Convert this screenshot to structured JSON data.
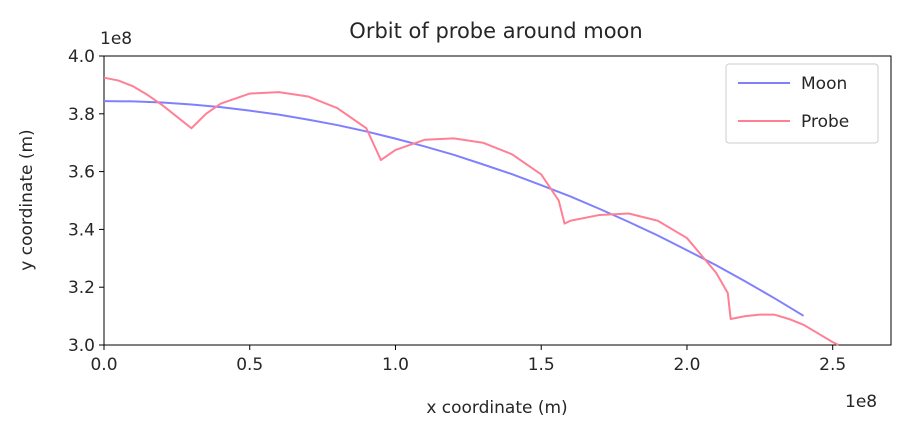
{
  "chart_data": {
    "type": "line",
    "title": "Orbit of probe around moon",
    "xlabel": "x coordinate (m)",
    "ylabel": "y coordinate (m)",
    "x_offset_text": "1e8",
    "y_offset_text": "1e8",
    "xlim": [
      0.0,
      2.7
    ],
    "ylim": [
      3.0,
      4.0
    ],
    "xticks": [
      "0.0",
      "0.5",
      "1.0",
      "1.5",
      "2.0",
      "2.5"
    ],
    "yticks": [
      "3.0",
      "3.2",
      "3.4",
      "3.6",
      "3.8",
      "4.0"
    ],
    "grid": false,
    "legend_position": "top-right",
    "series": [
      {
        "name": "Moon",
        "color": "#8080ff",
        "x": [
          0.0,
          0.1,
          0.2,
          0.3,
          0.4,
          0.5,
          0.6,
          0.7,
          0.8,
          0.9,
          1.0,
          1.1,
          1.2,
          1.3,
          1.4,
          1.5,
          1.6,
          1.7,
          1.8,
          1.9,
          2.0,
          2.1,
          2.2,
          2.3,
          2.4
        ],
        "y": [
          3.844,
          3.843,
          3.839,
          3.832,
          3.823,
          3.811,
          3.797,
          3.78,
          3.761,
          3.739,
          3.714,
          3.687,
          3.658,
          3.625,
          3.591,
          3.553,
          3.514,
          3.471,
          3.426,
          3.379,
          3.328,
          3.276,
          3.22,
          3.162,
          3.101
        ]
      },
      {
        "name": "Probe",
        "color": "#ff8095",
        "x": [
          0.0,
          0.05,
          0.1,
          0.15,
          0.2,
          0.25,
          0.3,
          0.35,
          0.4,
          0.5,
          0.6,
          0.7,
          0.8,
          0.9,
          0.95,
          1.0,
          1.1,
          1.2,
          1.3,
          1.4,
          1.5,
          1.56,
          1.58,
          1.6,
          1.7,
          1.8,
          1.9,
          2.0,
          2.1,
          2.14,
          2.15,
          2.2,
          2.25,
          2.3,
          2.35,
          2.4,
          2.45,
          2.5,
          2.52
        ],
        "y": [
          3.925,
          3.915,
          3.895,
          3.865,
          3.83,
          3.79,
          3.75,
          3.8,
          3.835,
          3.87,
          3.875,
          3.86,
          3.82,
          3.75,
          3.64,
          3.675,
          3.71,
          3.715,
          3.7,
          3.66,
          3.59,
          3.5,
          3.42,
          3.43,
          3.45,
          3.455,
          3.43,
          3.37,
          3.25,
          3.18,
          3.09,
          3.1,
          3.105,
          3.105,
          3.09,
          3.07,
          3.04,
          3.01,
          3.0
        ]
      }
    ]
  }
}
